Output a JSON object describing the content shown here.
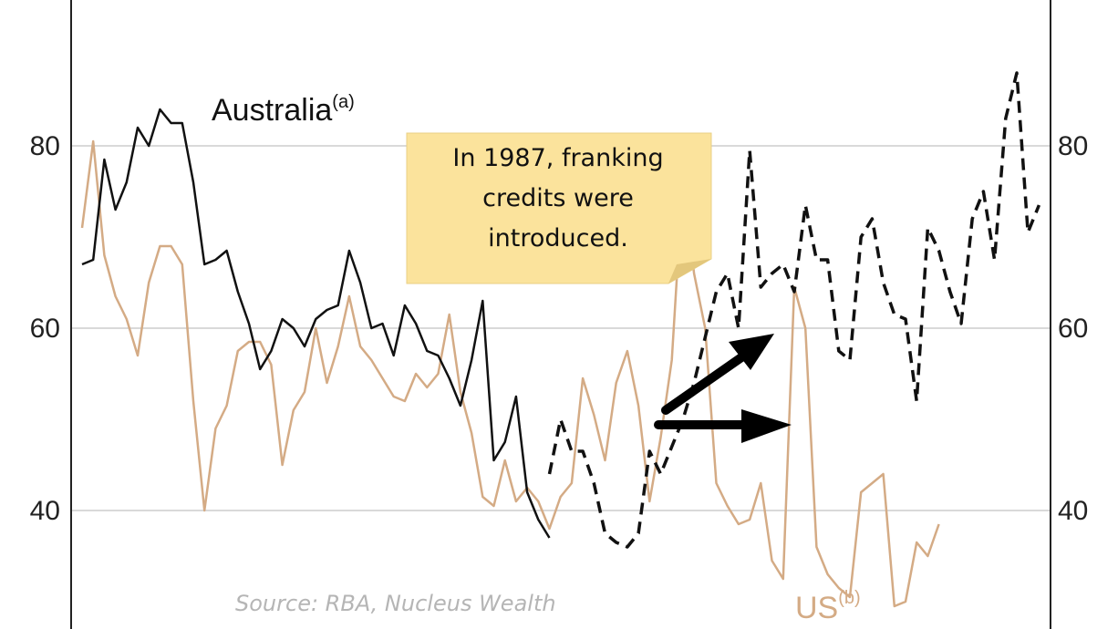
{
  "chart_data": {
    "type": "line",
    "title": "",
    "xlabel": "",
    "ylabel": "",
    "ylim": [
      27,
      96
    ],
    "yticks": [
      40,
      60,
      80
    ],
    "grid": true,
    "series": [
      {
        "name": "Australia",
        "superscript": "(a)",
        "color": "#111111",
        "style": "solid",
        "x": [
          0,
          1,
          2,
          3,
          4,
          5,
          6,
          7,
          8,
          9,
          10,
          11,
          12,
          13,
          14,
          15,
          16,
          17,
          18,
          19,
          20,
          21,
          22,
          23,
          24,
          25,
          26,
          27,
          28,
          29,
          30,
          31,
          32,
          33,
          34,
          35,
          36,
          37,
          38,
          39,
          40,
          41,
          42
        ],
        "values": [
          67,
          67.5,
          78.5,
          73,
          76,
          82,
          80,
          84,
          82.5,
          82.5,
          76,
          67,
          67.5,
          68.5,
          64,
          60.5,
          55.5,
          57.5,
          61,
          60,
          58,
          61,
          62,
          62.5,
          68.5,
          65,
          60,
          60.5,
          57,
          62.5,
          60.5,
          57.5,
          57,
          54.5,
          51.5,
          56.5,
          63,
          45.5,
          47.5,
          52.5,
          42,
          39,
          37
        ]
      },
      {
        "name": "Australia (dashed)",
        "color": "#111111",
        "style": "dashed",
        "x": [
          42,
          43,
          44,
          45,
          46,
          47,
          48,
          49,
          50,
          51,
          52,
          53,
          54,
          55,
          56,
          57,
          58,
          59,
          60,
          61,
          62,
          63,
          64,
          65,
          66,
          67,
          68,
          69,
          70,
          71,
          72,
          73,
          74,
          75,
          76,
          77,
          78,
          79,
          80,
          81,
          82,
          83,
          84,
          85,
          86,
          87,
          88,
          89,
          90,
          91
        ],
        "values": [
          44,
          50,
          46.5,
          46.5,
          43,
          37.5,
          36.5,
          36,
          37.5,
          46.5,
          44,
          47,
          50,
          54,
          59,
          64,
          66,
          60,
          79.5,
          64.5,
          66,
          67,
          64,
          73.5,
          67.5,
          67.5,
          57.5,
          56.5,
          70,
          72,
          65,
          61.5,
          61,
          52,
          71,
          68.5,
          64,
          60.5,
          72,
          75,
          67.5,
          83,
          88,
          70.5,
          73.5,
          null,
          null,
          null,
          null,
          null
        ]
      },
      {
        "name": "US",
        "superscript": "(b)",
        "color": "#d4ab85",
        "style": "solid",
        "x": [
          0,
          1,
          2,
          3,
          4,
          5,
          6,
          7,
          8,
          9,
          10,
          11,
          12,
          13,
          14,
          15,
          16,
          17,
          18,
          19,
          20,
          21,
          22,
          23,
          24,
          25,
          26,
          27,
          28,
          29,
          30,
          31,
          32,
          33,
          34,
          35,
          36,
          37,
          38,
          39,
          40,
          41,
          42,
          43,
          44,
          45,
          46,
          47,
          48,
          49,
          50,
          51,
          52,
          53,
          54,
          55,
          56,
          57,
          58,
          59,
          60,
          61,
          62,
          63,
          64,
          65,
          66,
          67,
          68,
          69,
          70,
          71,
          72,
          73,
          74,
          75,
          76,
          77,
          78,
          79,
          80,
          81,
          82,
          83,
          84
        ],
        "values": [
          71,
          80.5,
          68,
          63.5,
          61,
          57,
          65,
          69,
          69,
          67,
          52,
          40,
          49,
          51.5,
          57.5,
          58.5,
          58.5,
          56,
          45,
          51,
          53,
          60,
          54,
          58,
          63.5,
          58,
          56.5,
          54.5,
          52.5,
          52,
          55,
          53.5,
          55,
          61.5,
          53,
          48.5,
          41.5,
          40.5,
          45.5,
          41,
          42.5,
          41,
          38,
          41.5,
          43,
          54.5,
          50.5,
          45.5,
          54,
          57.5,
          51.5,
          41,
          48,
          56.5,
          76.5,
          66,
          60,
          43,
          40.5,
          38.5,
          39,
          43,
          34.5,
          32.5,
          64.5,
          60,
          36,
          33,
          31.5,
          30.5,
          42,
          43,
          44,
          29.5,
          30,
          36.5,
          35,
          38.5,
          null,
          null,
          null,
          null,
          null,
          null,
          null
        ]
      }
    ],
    "annotations": {
      "note_lines": [
        "In 1987, franking",
        "credits were",
        "introduced."
      ],
      "source": "Source: RBA, Nucleus Wealth"
    }
  },
  "colors": {
    "note_fill": "#fbe39c",
    "gridline": "#d9d9d9",
    "axis": "#222222"
  }
}
